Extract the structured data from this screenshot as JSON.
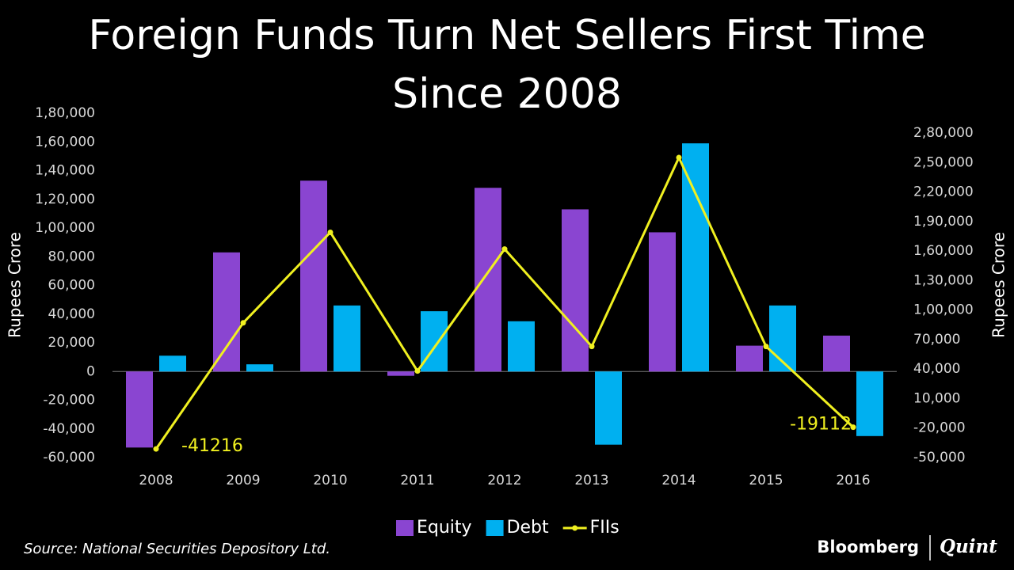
{
  "chart_data": {
    "type": "bar-line",
    "title": "Foreign Funds Turn Net Sellers First Time",
    "subtitle": "Since 2008",
    "ylabel": "Rupees  Crore",
    "y2label": "Rupees  Crore",
    "categories": [
      "2008",
      "2009",
      "2010",
      "2011",
      "2012",
      "2013",
      "2014",
      "2015",
      "2016"
    ],
    "series": [
      {
        "name": "Equity",
        "type": "bar",
        "color": "#8a45d1",
        "values": [
          -53000,
          83000,
          133000,
          -3000,
          128000,
          113000,
          97000,
          18000,
          25000
        ]
      },
      {
        "name": "Debt",
        "type": "bar",
        "color": "#00b0f0",
        "values": [
          11000,
          5000,
          46000,
          42000,
          35000,
          -51000,
          159000,
          46000,
          -45000
        ]
      },
      {
        "name": "FIIs",
        "type": "line",
        "axis": "y2",
        "color": "#f0f020",
        "values": [
          -41216,
          87000,
          179000,
          38000,
          162000,
          63000,
          255000,
          63000,
          -19112
        ],
        "value_labels": [
          -41216,
          null,
          null,
          null,
          null,
          null,
          null,
          null,
          -19112
        ]
      }
    ],
    "ylim": [
      -60000,
      180000
    ],
    "yticks": [
      {
        "value": -60000,
        "label": "-60,000"
      },
      {
        "value": -40000,
        "label": "-40,000"
      },
      {
        "value": -20000,
        "label": "-20,000"
      },
      0,
      {
        "value": 20000,
        "label": "20,000"
      },
      {
        "value": 40000,
        "label": "40,000"
      },
      {
        "value": 60000,
        "label": "60,000"
      },
      {
        "value": 80000,
        "label": "80,000"
      },
      {
        "value": 100000,
        "label": "1,00,000"
      },
      {
        "value": 120000,
        "label": "1,20,000"
      },
      {
        "value": 140000,
        "label": "1,40,000"
      },
      {
        "value": 160000,
        "label": "1,60,000"
      },
      {
        "value": 180000,
        "label": "1,80,000"
      }
    ],
    "y2lim": [
      -50000,
      280000
    ],
    "y2ticks": [
      {
        "value": -50000,
        "label": "-50,000"
      },
      {
        "value": -20000,
        "label": "-20,000"
      },
      {
        "value": 10000,
        "label": "10,000"
      },
      {
        "value": 40000,
        "label": "40,000"
      },
      {
        "value": 70000,
        "label": "70,000"
      },
      {
        "value": 100000,
        "label": "1,00,000"
      },
      {
        "value": 130000,
        "label": "1,30,000"
      },
      {
        "value": 160000,
        "label": "1,60,000"
      },
      {
        "value": 190000,
        "label": "1,90,000"
      },
      {
        "value": 220000,
        "label": "2,20,000"
      },
      {
        "value": 250000,
        "label": "2,50,000"
      },
      {
        "value": 280000,
        "label": "2,80,000"
      }
    ],
    "legend": "bottom",
    "source": "Source: National Securities Depository Ltd.",
    "brand": [
      "Bloomberg",
      "Quint"
    ]
  }
}
